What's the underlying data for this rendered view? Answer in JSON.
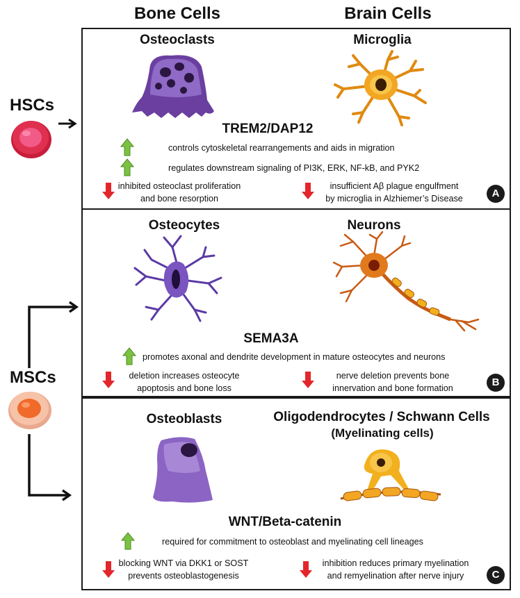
{
  "headers": {
    "bone": "Bone Cells",
    "brain": "Brain Cells"
  },
  "stem_cells": {
    "hsc": "HSCs",
    "msc": "MSCs"
  },
  "panels": [
    {
      "badge": "A",
      "bone_cell": "Osteoclasts",
      "brain_cell": "Microglia",
      "pathway": "TREM2/DAP12",
      "up": [
        "controls cytoskeletal rearrangements and aids in migration",
        "regulates downstream signaling of PI3K, ERK, NF-kB, and PYK2"
      ],
      "down_bone": [
        "inhibited osteoclast proliferation",
        "and bone resorption"
      ],
      "down_brain": [
        "insufficient Aβ plague engulfment",
        "by microglia in Alzhiemer’s Disease"
      ]
    },
    {
      "badge": "B",
      "bone_cell": "Osteocytes",
      "brain_cell": "Neurons",
      "pathway": "SEMA3A",
      "up": [
        "promotes axonal and dendrite development in mature osteocytes and neurons"
      ],
      "down_bone": [
        "deletion increases osteocyte",
        "apoptosis and bone loss"
      ],
      "down_brain": [
        "nerve deletion prevents bone",
        "innervation and bone formation"
      ]
    },
    {
      "badge": "C",
      "bone_cell": "Osteoblasts",
      "brain_cell": "Oligodendrocytes / Schwann Cells",
      "brain_cell_sub": "(Myelinating cells)",
      "pathway": "WNT/Beta-catenin",
      "up": [
        "required for commitment to osteoblast and myelinating cell lineages"
      ],
      "down_bone": [
        "blocking WNT via DKK1 or SOST",
        "prevents osteoblastogenesis"
      ],
      "down_brain": [
        "inhibition reduces primary myelination",
        "and remyelination after nerve injury"
      ]
    }
  ],
  "colors": {
    "up_arrow": "#7cc242",
    "down_arrow": "#e3262b",
    "osteoclast": "#6a3fa0",
    "microglia": "#f0a020",
    "osteocyte": "#5b3aa5",
    "neuron": "#e07a1c",
    "osteoblast": "#8b64c4",
    "myelinating": "#f2b01e",
    "hsc": "#e0304f",
    "msc": "#f06a2a"
  }
}
